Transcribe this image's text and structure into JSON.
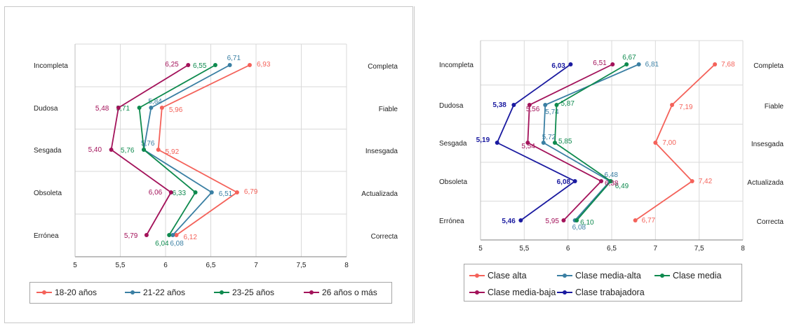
{
  "chart_data": [
    {
      "type": "line",
      "orientation": "horizontal-values",
      "title": "",
      "xlim": [
        5,
        8
      ],
      "x_ticks": [
        "5",
        "5,5",
        "6",
        "6,5",
        "7",
        "7,5",
        "8"
      ],
      "categories_left": [
        "Incompleta",
        "Dudosa",
        "Sesgada",
        "Obsoleta",
        "Errónea"
      ],
      "categories_right": [
        "Completa",
        "Fiable",
        "Insesgada",
        "Actualizada",
        "Correcta"
      ],
      "grid": "major",
      "legend_position": "bottom",
      "series": [
        {
          "name": "18-20 años",
          "color": "#f4625a",
          "values": [
            6.93,
            5.96,
            5.92,
            6.79,
            6.12
          ],
          "labels": [
            "6,93",
            "5,96",
            "5,92",
            "6,79",
            "6,12"
          ]
        },
        {
          "name": "21-22 años",
          "color": "#3a7fa3",
          "values": [
            6.71,
            5.84,
            5.76,
            6.51,
            6.08
          ],
          "labels": [
            "6,71",
            "5,84",
            "5,76",
            "6,51",
            "6,08"
          ]
        },
        {
          "name": "23-25 años",
          "color": "#0e8a4e",
          "values": [
            6.55,
            5.71,
            5.76,
            6.33,
            6.04
          ],
          "labels": [
            "6,55",
            "5,71",
            "5,76",
            "6,33",
            "6,04"
          ]
        },
        {
          "name": "26 años o más",
          "color": "#a3125a",
          "values": [
            6.25,
            5.48,
            5.4,
            6.06,
            5.79
          ],
          "labels": [
            "6,25",
            "5,48",
            "5,40",
            "6,06",
            "5,79"
          ]
        }
      ]
    },
    {
      "type": "line",
      "orientation": "horizontal-values",
      "title": "",
      "xlim": [
        5,
        8
      ],
      "x_ticks": [
        "5",
        "5,5",
        "6",
        "6,5",
        "7",
        "7,5",
        "8"
      ],
      "categories_left": [
        "Incompleta",
        "Dudosa",
        "Sesgada",
        "Obsoleta",
        "Errónea"
      ],
      "categories_right": [
        "Completa",
        "Fiable",
        "Insesgada",
        "Actualizada",
        "Correcta"
      ],
      "grid": "major",
      "legend_position": "bottom",
      "series": [
        {
          "name": "Clase alta",
          "color": "#f4625a",
          "values": [
            7.68,
            7.19,
            7.0,
            7.42,
            6.77
          ],
          "labels": [
            "7,68",
            "7,19",
            "7,00",
            "7,42",
            "6,77"
          ]
        },
        {
          "name": "Clase media-alta",
          "color": "#3a7fa3",
          "values": [
            6.81,
            5.74,
            5.72,
            6.48,
            6.08
          ],
          "labels": [
            "6,81",
            "5,74",
            "5,72",
            "6,48",
            "6,08"
          ]
        },
        {
          "name": "Clase media",
          "color": "#0e8a4e",
          "values": [
            6.67,
            5.87,
            5.85,
            6.49,
            6.1
          ],
          "labels": [
            "6,67",
            "5,87",
            "5,85",
            "6,49",
            "6,10"
          ]
        },
        {
          "name": "Clase media-baja",
          "color": "#a3125a",
          "values": [
            6.51,
            5.56,
            5.54,
            6.38,
            5.95
          ],
          "labels": [
            "6,51",
            "5,56",
            "5,54",
            "6,38",
            "5,95"
          ]
        },
        {
          "name": "Clase trabajadora",
          "color": "#1a1aa0",
          "values": [
            6.03,
            5.38,
            5.19,
            6.08,
            5.46
          ],
          "labels": [
            "6,03",
            "5,38",
            "5,19",
            "6,08",
            "5,46"
          ]
        }
      ]
    }
  ]
}
